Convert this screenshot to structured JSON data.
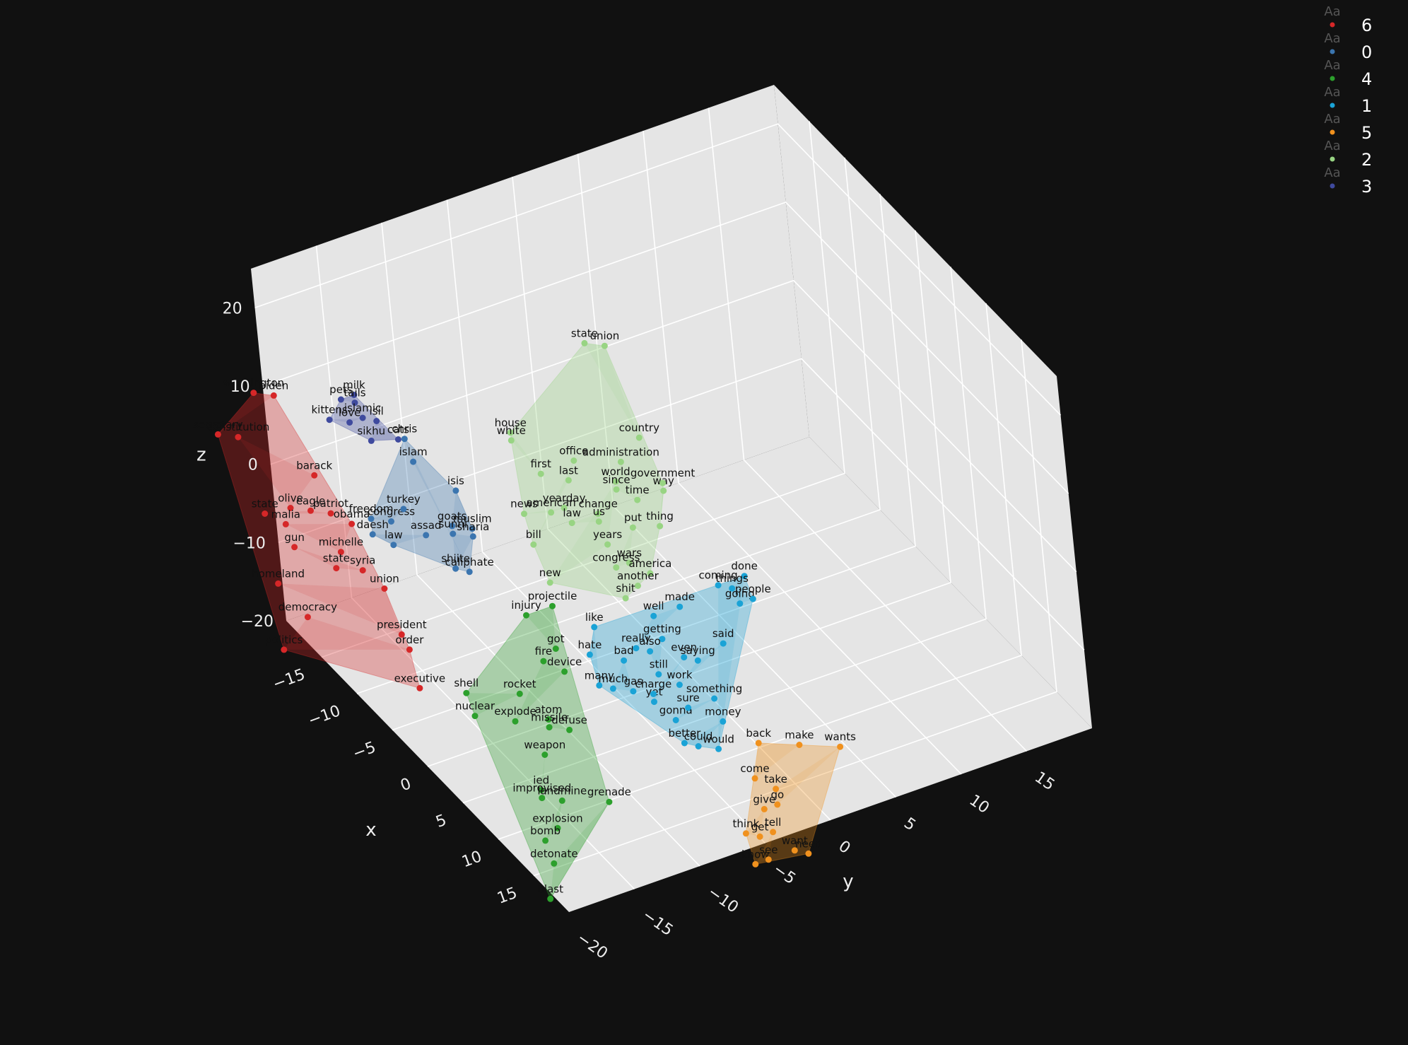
{
  "chart_data": {
    "type": "scatter",
    "dimensions": 3,
    "axes": {
      "x": {
        "title": "x",
        "ticks": [
          "−15",
          "−10",
          "−5",
          "0",
          "5",
          "10",
          "15"
        ]
      },
      "y": {
        "title": "y",
        "ticks": [
          "−20",
          "−15",
          "−10",
          "−5",
          "0",
          "5",
          "10",
          "15"
        ]
      },
      "z": {
        "title": "z",
        "ticks": [
          "−20",
          "−10",
          "0",
          "10",
          "20"
        ]
      }
    },
    "legend_position": "top-right",
    "legend_symbol": "Aa",
    "series": [
      {
        "name": "6",
        "color": "#d62728",
        "points": [
          {
            "label": "washington",
            "x": -13,
            "y": -24,
            "z": 18
          },
          {
            "label": "biden",
            "x": -12,
            "y": -23,
            "z": 18
          },
          {
            "label": "secretary",
            "x": -15,
            "y": -26,
            "z": 12
          },
          {
            "label": "constitution",
            "x": -14,
            "y": -25,
            "z": 12
          },
          {
            "label": "barack",
            "x": -9,
            "y": -22,
            "z": 10
          },
          {
            "label": "olive",
            "x": -9,
            "y": -24,
            "z": 7
          },
          {
            "label": "eagle",
            "x": -8,
            "y": -23,
            "z": 7
          },
          {
            "label": "patriot",
            "x": -7,
            "y": -22,
            "z": 7
          },
          {
            "label": "state",
            "x": -11,
            "y": -25,
            "z": 5
          },
          {
            "label": "malia",
            "x": -10,
            "y": -24,
            "z": 4
          },
          {
            "label": "obama",
            "x": -6,
            "y": -21,
            "z": 6
          },
          {
            "label": "michelle",
            "x": -6,
            "y": -22,
            "z": 3
          },
          {
            "label": "gun",
            "x": -9,
            "y": -24,
            "z": 2
          },
          {
            "label": "syria",
            "x": -5,
            "y": -21,
            "z": 1
          },
          {
            "label": "state",
            "x": -7,
            "y": -22,
            "z": 0
          },
          {
            "label": "union",
            "x": -4,
            "y": -20,
            "z": -1
          },
          {
            "label": "homeland",
            "x": -10,
            "y": -25,
            "z": -3
          },
          {
            "label": "president",
            "x": -2,
            "y": -20,
            "z": -5
          },
          {
            "label": "democracy",
            "x": -8,
            "y": -24,
            "z": -6
          },
          {
            "label": "politics",
            "x": -8,
            "y": -26,
            "z": -9
          },
          {
            "label": "order",
            "x": -1,
            "y": -20,
            "z": -6
          },
          {
            "label": "executive",
            "x": 0,
            "y": -20,
            "z": -10
          }
        ]
      },
      {
        "name": "0",
        "color": "#3b75af",
        "points": [
          {
            "label": "freedom",
            "x": -5,
            "y": -20,
            "z": 7
          },
          {
            "label": "congress",
            "x": -4,
            "y": -19,
            "z": 7
          },
          {
            "label": "turkey",
            "x": -4,
            "y": -18,
            "z": 8
          },
          {
            "label": "daesh",
            "x": -5,
            "y": -20,
            "z": 5
          },
          {
            "label": "law",
            "x": -4,
            "y": -19,
            "z": 4
          },
          {
            "label": "assad",
            "x": -3,
            "y": -17,
            "z": 5
          },
          {
            "label": "isis",
            "x": -4,
            "y": -14,
            "z": 8
          },
          {
            "label": "goats",
            "x": -3,
            "y": -15,
            "z": 5
          },
          {
            "label": "muslim",
            "x": -2,
            "y": -14,
            "z": 5
          },
          {
            "label": "sunni",
            "x": -3,
            "y": -15,
            "z": 4
          },
          {
            "label": "sharia",
            "x": -2,
            "y": -14,
            "z": 4
          },
          {
            "label": "shiite",
            "x": -1,
            "y": -16,
            "z": 2
          },
          {
            "label": "caliphate",
            "x": -1,
            "y": -15,
            "z": 1
          },
          {
            "label": "islam",
            "x": -6,
            "y": -16,
            "z": 11
          },
          {
            "label": "chris",
            "x": -7,
            "y": -16,
            "z": 13
          }
        ]
      },
      {
        "name": "4",
        "color": "#2ca02c",
        "points": [
          {
            "label": "injury",
            "x": 3,
            "y": -13,
            "z": -2
          },
          {
            "label": "projectile",
            "x": 3,
            "y": -11,
            "z": -2
          },
          {
            "label": "got",
            "x": 5,
            "y": -12,
            "z": -5
          },
          {
            "label": "shell",
            "x": 3,
            "y": -18,
            "z": -9
          },
          {
            "label": "nuclear",
            "x": 4,
            "y": -18,
            "z": -11
          },
          {
            "label": "rocket",
            "x": 5,
            "y": -15,
            "z": -9
          },
          {
            "label": "fire",
            "x": 5,
            "y": -13,
            "z": -6
          },
          {
            "label": "device",
            "x": 6,
            "y": -12,
            "z": -7
          },
          {
            "label": "explode",
            "x": 6,
            "y": -16,
            "z": -11
          },
          {
            "label": "atom",
            "x": 7,
            "y": -14,
            "z": -11
          },
          {
            "label": "missile",
            "x": 7,
            "y": -14,
            "z": -12
          },
          {
            "label": "defuse",
            "x": 8,
            "y": -13,
            "z": -12
          },
          {
            "label": "weapon",
            "x": 8,
            "y": -15,
            "z": -14
          },
          {
            "label": "ied",
            "x": 9,
            "y": -16,
            "z": -17
          },
          {
            "label": "improvised",
            "x": 9,
            "y": -16,
            "z": -18
          },
          {
            "label": "landmine",
            "x": 10,
            "y": -15,
            "z": -18
          },
          {
            "label": "explosion",
            "x": 11,
            "y": -16,
            "z": -20
          },
          {
            "label": "bomb",
            "x": 11,
            "y": -17,
            "z": -21
          },
          {
            "label": "grenade",
            "x": 11,
            "y": -12,
            "z": -19
          },
          {
            "label": "detonate",
            "x": 12,
            "y": -17,
            "z": -23
          },
          {
            "label": "blast",
            "x": 13,
            "y": -18,
            "z": -26
          }
        ]
      },
      {
        "name": "1",
        "color": "#1aa3d6",
        "points": [
          {
            "label": "like",
            "x": 5,
            "y": -9,
            "z": -4
          },
          {
            "label": "hate",
            "x": 6,
            "y": -10,
            "z": -6
          },
          {
            "label": "many",
            "x": 7,
            "y": -10,
            "z": -9
          },
          {
            "label": "much",
            "x": 7,
            "y": -9,
            "z": -10
          },
          {
            "label": "gas",
            "x": 8,
            "y": -8,
            "z": -10
          },
          {
            "label": "bad",
            "x": 7,
            "y": -8,
            "z": -7
          },
          {
            "label": "really",
            "x": 7,
            "y": -7,
            "z": -6
          },
          {
            "label": "well",
            "x": 6,
            "y": -5,
            "z": -4
          },
          {
            "label": "made",
            "x": 6,
            "y": -3,
            "z": -4
          },
          {
            "label": "getting",
            "x": 7,
            "y": -5,
            "z": -6
          },
          {
            "label": "also",
            "x": 7,
            "y": -6,
            "z": -7
          },
          {
            "label": "still",
            "x": 8,
            "y": -6,
            "z": -9
          },
          {
            "label": "yet",
            "x": 9,
            "y": -7,
            "z": -11
          },
          {
            "label": "charge",
            "x": 9,
            "y": -7,
            "z": -10
          },
          {
            "label": "even",
            "x": 8,
            "y": -4,
            "z": -8
          },
          {
            "label": "work",
            "x": 9,
            "y": -5,
            "z": -10
          },
          {
            "label": "saying",
            "x": 8,
            "y": -3,
            "z": -9
          },
          {
            "label": "said",
            "x": 8,
            "y": -1,
            "z": -8
          },
          {
            "label": "gonna",
            "x": 10,
            "y": -6,
            "z": -13
          },
          {
            "label": "sure",
            "x": 10,
            "y": -5,
            "z": -12
          },
          {
            "label": "something",
            "x": 10,
            "y": -3,
            "z": -12
          },
          {
            "label": "money",
            "x": 11,
            "y": -3,
            "z": -14
          },
          {
            "label": "better",
            "x": 11,
            "y": -6,
            "z": -15
          },
          {
            "label": "could",
            "x": 11,
            "y": -5,
            "z": -16
          },
          {
            "label": "would",
            "x": 12,
            "y": -4,
            "z": -16
          },
          {
            "label": "coming",
            "x": 6,
            "y": 0,
            "z": -3
          },
          {
            "label": "done",
            "x": 6,
            "y": 2,
            "z": -3
          },
          {
            "label": "things",
            "x": 6,
            "y": 1,
            "z": -4
          },
          {
            "label": "going",
            "x": 7,
            "y": 1,
            "z": -5
          },
          {
            "label": "people",
            "x": 7,
            "y": 2,
            "z": -5
          }
        ]
      },
      {
        "name": "5",
        "color": "#f0911e",
        "points": [
          {
            "label": "back",
            "x": 12,
            "y": -1,
            "z": -17
          },
          {
            "label": "come",
            "x": 13,
            "y": -2,
            "z": -20
          },
          {
            "label": "make",
            "x": 12,
            "y": 2,
            "z": -19
          },
          {
            "label": "wants",
            "x": 12,
            "y": 5,
            "z": -21
          },
          {
            "label": "take",
            "x": 14,
            "y": -1,
            "z": -21
          },
          {
            "label": "go",
            "x": 14,
            "y": -1,
            "z": -23
          },
          {
            "label": "give",
            "x": 14,
            "y": -2,
            "z": -23
          },
          {
            "label": "think",
            "x": 15,
            "y": -4,
            "z": -24
          },
          {
            "label": "get",
            "x": 15,
            "y": -3,
            "z": -25
          },
          {
            "label": "tell",
            "x": 15,
            "y": -2,
            "z": -25
          },
          {
            "label": "know",
            "x": 16,
            "y": -4,
            "z": -27
          },
          {
            "label": "see",
            "x": 16,
            "y": -3,
            "z": -27
          },
          {
            "label": "want",
            "x": 16,
            "y": -1,
            "z": -27
          },
          {
            "label": "need",
            "x": 16,
            "y": 0,
            "z": -28
          }
        ]
      },
      {
        "name": "2",
        "color": "#98d483",
        "points": [
          {
            "label": "house",
            "x": -3,
            "y": -10,
            "z": 14
          },
          {
            "label": "white",
            "x": -3,
            "y": -10,
            "z": 13
          },
          {
            "label": "first",
            "x": -1,
            "y": -9,
            "z": 10
          },
          {
            "label": "news",
            "x": 0,
            "y": -11,
            "z": 7
          },
          {
            "label": "american",
            "x": 0,
            "y": -9,
            "z": 6
          },
          {
            "label": "yearday",
            "x": 0,
            "y": -8,
            "z": 6
          },
          {
            "label": "bill",
            "x": 1,
            "y": -11,
            "z": 4
          },
          {
            "label": "office",
            "x": -2,
            "y": -6,
            "z": 9
          },
          {
            "label": "last",
            "x": -1,
            "y": -7,
            "z": 8
          },
          {
            "label": "law",
            "x": 1,
            "y": -8,
            "z": 5
          },
          {
            "label": "change",
            "x": 1,
            "y": -6,
            "z": 5
          },
          {
            "label": "us",
            "x": 1,
            "y": -6,
            "z": 4
          },
          {
            "label": "new",
            "x": 3,
            "y": -11,
            "z": 1
          },
          {
            "label": "years",
            "x": 2,
            "y": -6,
            "z": 2
          },
          {
            "label": "world",
            "x": 0,
            "y": -4,
            "z": 7
          },
          {
            "label": "since",
            "x": 0,
            "y": -4,
            "z": 6
          },
          {
            "label": "administration",
            "x": -1,
            "y": -3,
            "z": 8
          },
          {
            "label": "time",
            "x": 1,
            "y": -3,
            "z": 5
          },
          {
            "label": "put",
            "x": 2,
            "y": -4,
            "z": 3
          },
          {
            "label": "congress",
            "x": 3,
            "y": -6,
            "z": 0
          },
          {
            "label": "wars",
            "x": 3,
            "y": -5,
            "z": 0
          },
          {
            "label": "america",
            "x": 4,
            "y": -4,
            "z": -1
          },
          {
            "label": "another",
            "x": 4,
            "y": -5,
            "z": -2
          },
          {
            "label": "shit",
            "x": 4,
            "y": -6,
            "z": -3
          },
          {
            "label": "thing",
            "x": 2,
            "y": -2,
            "z": 2
          },
          {
            "label": "way",
            "x": 1,
            "y": -1,
            "z": 5
          },
          {
            "label": "government",
            "x": 1,
            "y": -1,
            "z": 6
          },
          {
            "label": "country",
            "x": -2,
            "y": -1,
            "z": 9
          },
          {
            "label": "state",
            "x": -7,
            "y": -2,
            "z": 17
          },
          {
            "label": "union",
            "x": -6,
            "y": -1,
            "z": 17
          }
        ]
      },
      {
        "name": "3",
        "color": "#3f4a9e",
        "points": [
          {
            "label": "pets",
            "x": -10,
            "y": -19,
            "z": 17
          },
          {
            "label": "milk",
            "x": -10,
            "y": -18,
            "z": 17
          },
          {
            "label": "tails",
            "x": -10,
            "y": -18,
            "z": 16
          },
          {
            "label": "kittens",
            "x": -10,
            "y": -20,
            "z": 15
          },
          {
            "label": "love",
            "x": -9,
            "y": -19,
            "z": 15
          },
          {
            "label": "islamic",
            "x": -9,
            "y": -18,
            "z": 15
          },
          {
            "label": "isil",
            "x": -9,
            "y": -17,
            "z": 14
          },
          {
            "label": "sikhu",
            "x": -8,
            "y": -18,
            "z": 13
          },
          {
            "label": "cats",
            "x": -8,
            "y": -16,
            "z": 12
          }
        ]
      }
    ]
  }
}
